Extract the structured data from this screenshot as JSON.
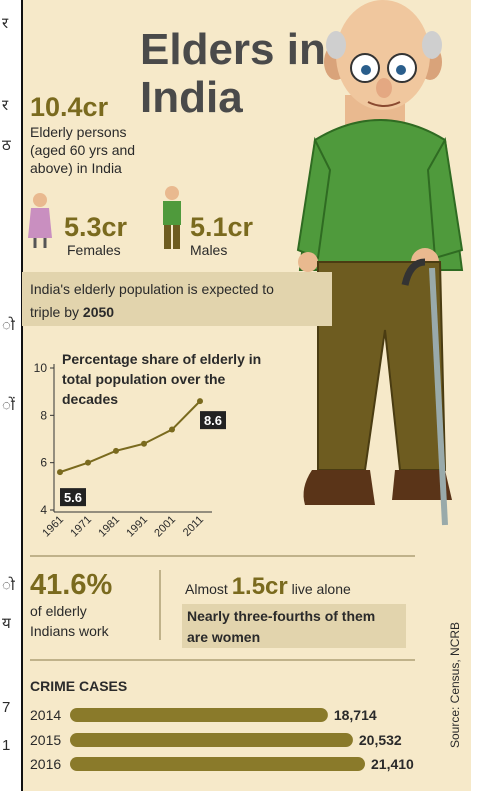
{
  "margin_fragments": [
    "र",
    "र",
    "ठ",
    "ो",
    "ों",
    "ो",
    "य",
    "7",
    "1"
  ],
  "title_lines": [
    "Elders in",
    "India"
  ],
  "total": {
    "value": "10.4cr",
    "description_lines": [
      "Elderly persons",
      "(aged 60 yrs and",
      "above) in India"
    ]
  },
  "females": {
    "value": "5.3cr",
    "label": "Females"
  },
  "males": {
    "value": "5.1cr",
    "label": "Males"
  },
  "projection": {
    "line1": "India's elderly population is expected to",
    "line2": "triple by ",
    "year": "2050"
  },
  "work": {
    "value": "41.6%",
    "lines": [
      "of elderly",
      "Indians work"
    ]
  },
  "alone": {
    "prefix": "Almost ",
    "value": "1.5cr",
    "suffix": " live alone",
    "note_lines": [
      "Nearly three-fourths of them",
      "are women"
    ]
  },
  "source": "Source: Census, NCRB",
  "chart_data": [
    {
      "type": "line",
      "title_lines": [
        "Percentage share of elderly in",
        "total population over the",
        "decades"
      ],
      "categories": [
        "1961",
        "1971",
        "1981",
        "1991",
        "2001",
        "2011"
      ],
      "values": [
        5.6,
        6.0,
        6.5,
        6.8,
        7.4,
        8.6
      ],
      "labeled_points": [
        0,
        5
      ],
      "ylim": [
        4,
        10
      ],
      "yticks": [
        4,
        6,
        8,
        10
      ],
      "color": "#7a6a1e"
    },
    {
      "type": "hbar",
      "title": "CRIME CASES",
      "categories": [
        "2014",
        "2015",
        "2016"
      ],
      "values": [
        18714,
        20532,
        21410
      ],
      "value_labels": [
        "18,714",
        "20,532",
        "21,410"
      ],
      "color": "#8a7a2a"
    }
  ]
}
